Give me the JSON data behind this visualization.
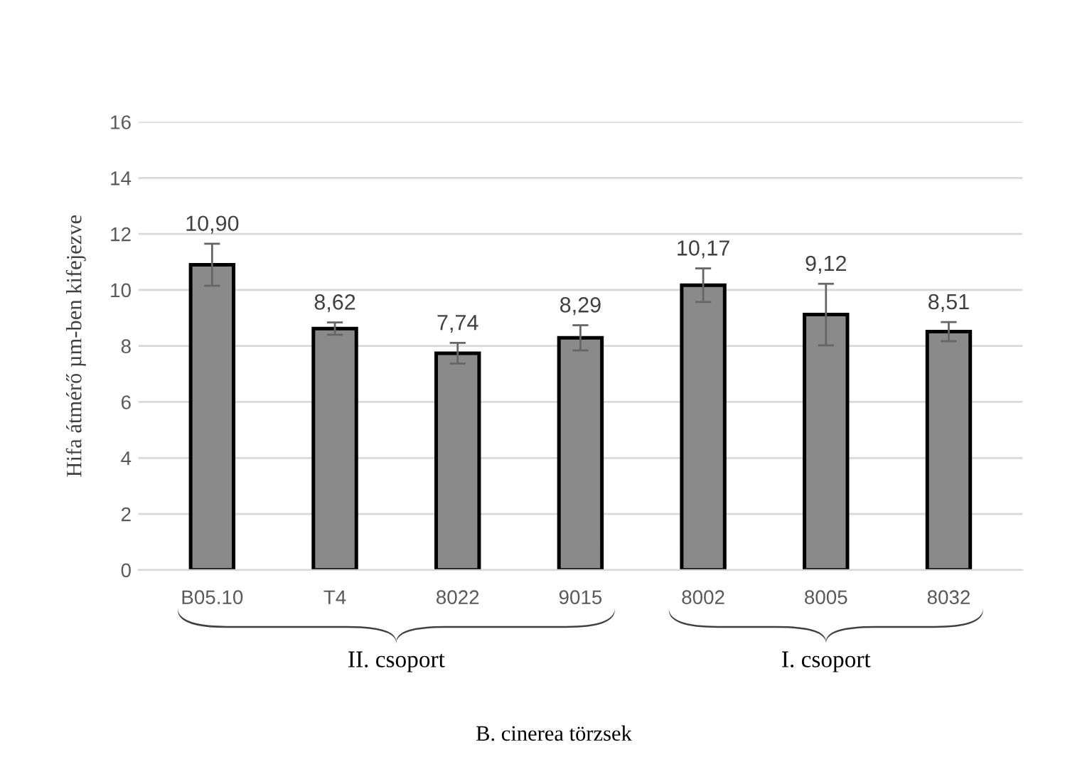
{
  "chart_data": {
    "type": "bar",
    "ylabel": "Hifa átmérő µm-ben kifejezve",
    "categories": [
      "B05.10",
      "T4",
      "8022",
      "9015",
      "8002",
      "8005",
      "8032"
    ],
    "values": [
      10.9,
      8.62,
      7.74,
      8.29,
      10.17,
      9.12,
      8.51
    ],
    "value_labels": [
      "10,90",
      "8,62",
      "7,74",
      "8,29",
      "10,17",
      "9,12",
      "8,51"
    ],
    "errors": [
      0.75,
      0.22,
      0.37,
      0.45,
      0.6,
      1.1,
      0.34
    ],
    "color": "#8a8a8a",
    "ylim": [
      0,
      16
    ],
    "yticks": [
      0,
      2,
      4,
      6,
      8,
      10,
      12,
      14,
      16
    ],
    "grid": "y",
    "annotations": [
      "II. csoport",
      "I. csoport",
      "B. cinerea törzsek"
    ]
  }
}
